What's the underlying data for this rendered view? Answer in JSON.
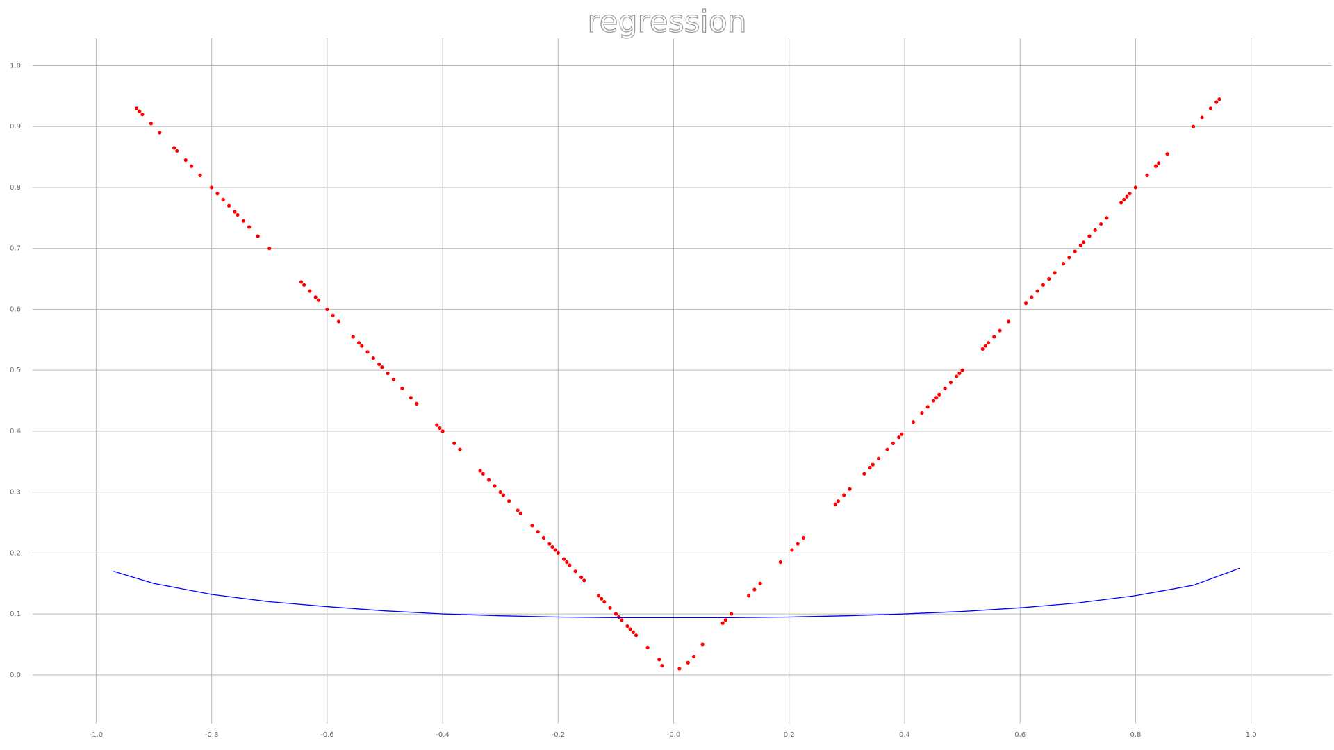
{
  "chart_data": {
    "type": "scatter",
    "title": "regression",
    "xlim": [
      -1.11,
      1.14
    ],
    "ylim": [
      -0.08,
      1.045
    ],
    "xticks": [
      {
        "value": -1.0,
        "label": "-1.0"
      },
      -0.8,
      -0.6,
      -0.4,
      -0.2,
      {
        "value": 0,
        "label": "-0.0"
      },
      0.2,
      0.4,
      0.6,
      0.8,
      {
        "value": 1.0,
        "label": "1.0"
      }
    ],
    "yticks": [
      {
        "value": 0,
        "label": "0.0"
      },
      0.1,
      0.2,
      0.3,
      0.4,
      0.5,
      0.6,
      0.7,
      0.8,
      0.9,
      {
        "value": 1.0,
        "label": "1.0"
      }
    ],
    "grid": true,
    "series": [
      {
        "type": "scatter",
        "color": "#ff0000",
        "x": [
          -0.93,
          -0.925,
          -0.92,
          -0.905,
          -0.89,
          -0.865,
          -0.86,
          -0.845,
          -0.835,
          -0.82,
          -0.8,
          -0.79,
          -0.78,
          -0.77,
          -0.76,
          -0.755,
          -0.745,
          -0.735,
          -0.72,
          -0.7,
          -0.645,
          -0.64,
          -0.63,
          -0.62,
          -0.615,
          -0.6,
          -0.59,
          -0.58,
          -0.555,
          -0.545,
          -0.54,
          -0.53,
          -0.52,
          -0.51,
          -0.505,
          -0.495,
          -0.485,
          -0.47,
          -0.455,
          -0.445,
          -0.41,
          -0.405,
          -0.4,
          -0.38,
          -0.37,
          -0.335,
          -0.33,
          -0.32,
          -0.31,
          -0.3,
          -0.295,
          -0.285,
          -0.27,
          -0.265,
          -0.245,
          -0.235,
          -0.225,
          -0.215,
          -0.21,
          -0.205,
          -0.2,
          -0.19,
          -0.185,
          -0.18,
          -0.17,
          -0.16,
          -0.155,
          -0.13,
          -0.125,
          -0.12,
          -0.11,
          -0.1,
          -0.095,
          -0.09,
          -0.08,
          -0.075,
          -0.07,
          -0.065,
          -0.045,
          -0.025,
          -0.02,
          0.01,
          0.025,
          0.035,
          0.05,
          0.085,
          0.09,
          0.1,
          0.13,
          0.14,
          0.15,
          0.185,
          0.205,
          0.215,
          0.225,
          0.28,
          0.285,
          0.295,
          0.305,
          0.33,
          0.34,
          0.345,
          0.355,
          0.37,
          0.38,
          0.39,
          0.395,
          0.415,
          0.43,
          0.44,
          0.45,
          0.455,
          0.46,
          0.47,
          0.48,
          0.49,
          0.495,
          0.5,
          0.535,
          0.54,
          0.545,
          0.555,
          0.565,
          0.58,
          0.61,
          0.62,
          0.63,
          0.64,
          0.65,
          0.66,
          0.675,
          0.685,
          0.695,
          0.705,
          0.71,
          0.72,
          0.73,
          0.74,
          0.75,
          0.775,
          0.78,
          0.785,
          0.79,
          0.8,
          0.82,
          0.835,
          0.84,
          0.855,
          0.9,
          0.915,
          0.93,
          0.94,
          0.945
        ],
        "values": [
          0.93,
          0.925,
          0.92,
          0.905,
          0.89,
          0.865,
          0.86,
          0.845,
          0.835,
          0.82,
          0.8,
          0.79,
          0.78,
          0.77,
          0.76,
          0.755,
          0.745,
          0.735,
          0.72,
          0.7,
          0.645,
          0.64,
          0.63,
          0.62,
          0.615,
          0.6,
          0.59,
          0.58,
          0.555,
          0.545,
          0.54,
          0.53,
          0.52,
          0.51,
          0.505,
          0.495,
          0.485,
          0.47,
          0.455,
          0.445,
          0.41,
          0.405,
          0.4,
          0.38,
          0.37,
          0.335,
          0.33,
          0.32,
          0.31,
          0.3,
          0.295,
          0.285,
          0.27,
          0.265,
          0.245,
          0.235,
          0.225,
          0.215,
          0.21,
          0.205,
          0.2,
          0.19,
          0.185,
          0.18,
          0.17,
          0.16,
          0.155,
          0.13,
          0.125,
          0.12,
          0.11,
          0.1,
          0.095,
          0.09,
          0.08,
          0.075,
          0.07,
          0.065,
          0.045,
          0.025,
          0.015,
          0.01,
          0.02,
          0.03,
          0.05,
          0.085,
          0.09,
          0.1,
          0.13,
          0.14,
          0.15,
          0.185,
          0.205,
          0.215,
          0.225,
          0.28,
          0.285,
          0.295,
          0.305,
          0.33,
          0.34,
          0.345,
          0.355,
          0.37,
          0.38,
          0.39,
          0.395,
          0.415,
          0.43,
          0.44,
          0.45,
          0.455,
          0.46,
          0.47,
          0.48,
          0.49,
          0.495,
          0.5,
          0.535,
          0.54,
          0.545,
          0.555,
          0.565,
          0.58,
          0.61,
          0.62,
          0.63,
          0.64,
          0.65,
          0.66,
          0.675,
          0.685,
          0.695,
          0.705,
          0.71,
          0.72,
          0.73,
          0.74,
          0.75,
          0.775,
          0.78,
          0.785,
          0.79,
          0.8,
          0.82,
          0.835,
          0.84,
          0.855,
          0.9,
          0.915,
          0.93,
          0.94,
          0.945
        ]
      },
      {
        "type": "line",
        "color": "#0000ff",
        "x": [
          -0.97,
          -0.9,
          -0.8,
          -0.7,
          -0.6,
          -0.5,
          -0.4,
          -0.3,
          -0.2,
          -0.1,
          0,
          0.1,
          0.2,
          0.3,
          0.4,
          0.5,
          0.6,
          0.7,
          0.8,
          0.9,
          0.98
        ],
        "values": [
          0.17,
          0.15,
          0.132,
          0.12,
          0.112,
          0.105,
          0.1,
          0.097,
          0.095,
          0.094,
          0.094,
          0.094,
          0.095,
          0.097,
          0.1,
          0.104,
          0.11,
          0.118,
          0.13,
          0.147,
          0.175
        ]
      }
    ]
  }
}
